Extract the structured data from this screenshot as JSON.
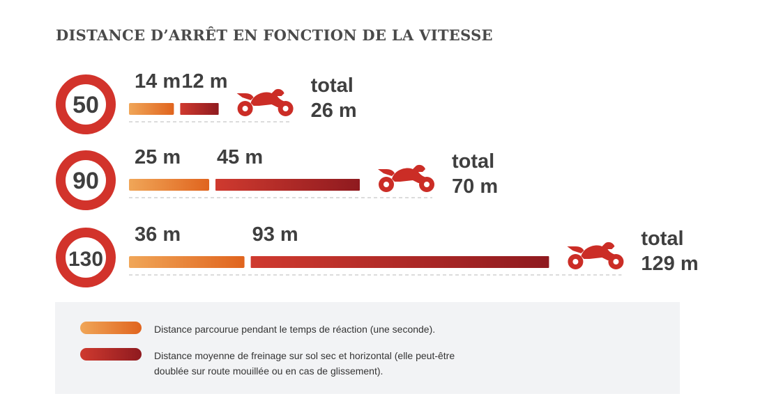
{
  "colors": {
    "sign_ring": "#d2332b",
    "reaction_start": "#f0a658",
    "reaction_end": "#e0641e",
    "braking_start": "#cf3a2f",
    "braking_end": "#8f1a1f",
    "motorcycle": "#cb2d26",
    "legend_bg": "#f2f3f5"
  },
  "chart_data": {
    "type": "bar",
    "title": "DISTANCE D’ARRÊT EN FONCTION DE LA VITESSE",
    "stacked": true,
    "orientation": "horizontal",
    "categories": [
      "50",
      "90",
      "130"
    ],
    "series": [
      {
        "name": "Distance parcourue pendant le temps de réaction (une seconde).",
        "values": [
          14,
          25,
          36
        ],
        "labels": [
          "14 m",
          "25 m",
          "36 m"
        ]
      },
      {
        "name": "Distance moyenne de freinage sur sol sec et horizontal (elle peut-être doublée sur route mouillée ou en cas de glissement).",
        "values": [
          12,
          45,
          93
        ],
        "labels": [
          "12 m",
          "45 m",
          "93 m"
        ]
      }
    ],
    "totals": [
      26,
      70,
      129
    ],
    "total_word": "total",
    "total_labels": [
      "26 m",
      "70 m",
      "129 m"
    ],
    "legend_position": "bottom",
    "grid": false
  },
  "motorcycle_icon": "motorcycle-icon"
}
